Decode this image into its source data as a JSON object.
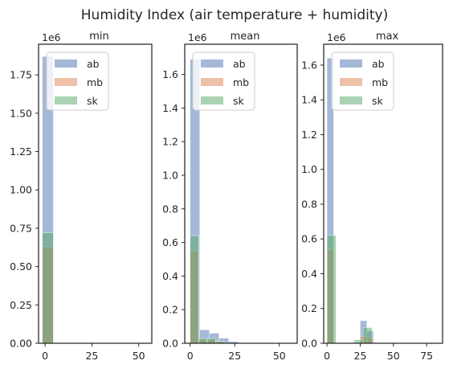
{
  "chart_data": {
    "type": "bar",
    "title": "Humidity Index (air temperature + humidity)",
    "series_colors": {
      "ab": "#4c72b0",
      "mb": "#dd8452",
      "sk": "#55a868"
    },
    "legend": [
      "ab",
      "mb",
      "sk"
    ],
    "legend_position": "upper left",
    "grid": false,
    "subplots": [
      {
        "title": "min",
        "y_offset_label": "1e6",
        "xlim": [
          -3.5,
          57
        ],
        "ylim": [
          0,
          1.95
        ],
        "x_ticks": [
          0,
          25,
          50
        ],
        "y_ticks": [
          0.0,
          0.25,
          0.5,
          0.75,
          1.0,
          1.25,
          1.5,
          1.75
        ],
        "y_tick_labels": [
          "0.00",
          "0.25",
          "0.50",
          "0.75",
          "1.00",
          "1.25",
          "1.50",
          "1.75"
        ],
        "series": [
          {
            "name": "ab",
            "bin_edges": [
              -1.5,
              4.4
            ],
            "counts": [
              1.87
            ]
          },
          {
            "name": "mb",
            "bin_edges": [
              -1.5,
              4.4
            ],
            "counts": [
              0.63
            ]
          },
          {
            "name": "sk",
            "bin_edges": [
              -1.5,
              4.4
            ],
            "counts": [
              0.72
            ]
          }
        ]
      },
      {
        "title": "mean",
        "y_offset_label": "1e6",
        "xlim": [
          -3,
          60
        ],
        "ylim": [
          0,
          1.78
        ],
        "x_ticks": [
          0,
          25,
          50
        ],
        "y_ticks": [
          0.0,
          0.2,
          0.4,
          0.6,
          0.8,
          1.0,
          1.2,
          1.4,
          1.6
        ],
        "y_tick_labels": [
          "0.0",
          "0.2",
          "0.4",
          "0.6",
          "0.8",
          "1.0",
          "1.2",
          "1.4",
          "1.6"
        ],
        "series": [
          {
            "name": "ab",
            "bin_edges": [
              0,
              5.4,
              10.8,
              16.2,
              21.6,
              27
            ],
            "counts": [
              1.69,
              0.08,
              0.06,
              0.03,
              0.01
            ]
          },
          {
            "name": "mb",
            "bin_edges": [
              0,
              4.7,
              9.4,
              14.1,
              18.8
            ],
            "counts": [
              0.55,
              0.02,
              0.02,
              0.01
            ]
          },
          {
            "name": "sk",
            "bin_edges": [
              0,
              4.8,
              9.6,
              14.4,
              19.2
            ],
            "counts": [
              0.64,
              0.03,
              0.03,
              0.01
            ]
          }
        ]
      },
      {
        "title": "max",
        "y_offset_label": "1e6",
        "xlim": [
          -2.5,
          87
        ],
        "ylim": [
          0,
          1.72
        ],
        "x_ticks": [
          0,
          25,
          50,
          75
        ],
        "y_ticks": [
          0.0,
          0.2,
          0.4,
          0.6,
          0.8,
          1.0,
          1.2,
          1.4,
          1.6
        ],
        "y_tick_labels": [
          "0.0",
          "0.2",
          "0.4",
          "0.6",
          "0.8",
          "1.0",
          "1.2",
          "1.4",
          "1.6"
        ],
        "series": [
          {
            "name": "ab",
            "bin_edges": [
              0,
              5,
              10,
              15,
              20,
              25,
              30,
              35
            ],
            "counts": [
              1.64,
              0,
              0,
              0,
              0,
              0.13,
              0.07
            ]
          },
          {
            "name": "mb",
            "bin_edges": [
              0,
              5,
              10,
              15,
              20,
              25,
              30,
              35
            ],
            "counts": [
              0.54,
              0,
              0,
              0,
              0,
              0.04,
              0.03
            ]
          },
          {
            "name": "sk",
            "bin_edges": [
              0,
              6.8,
              13.6,
              20.4,
              27.2,
              34
            ],
            "counts": [
              0.62,
              0,
              0,
              0.02,
              0.09
            ]
          }
        ]
      }
    ]
  }
}
